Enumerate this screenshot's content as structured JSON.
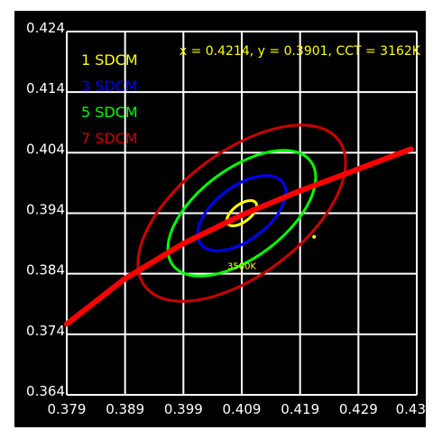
{
  "chart_data": {
    "type": "scatter",
    "title": "",
    "xlabel": "",
    "ylabel": "",
    "xlim": [
      0.379,
      0.439
    ],
    "ylim": [
      0.364,
      0.424
    ],
    "grid": true,
    "x_ticks": [
      "0.379",
      "0.389",
      "0.399",
      "0.409",
      "0.419",
      "0.429",
      "0.43"
    ],
    "y_ticks": [
      "0.424",
      "0.414",
      "0.404",
      "0.394",
      "0.384",
      "0.374",
      "0.364"
    ],
    "readout": "x = 0.4214, y = 0.3901, CCT = 3162K",
    "measured_point": {
      "x": 0.4214,
      "y": 0.3901
    },
    "ellipse_center": {
      "x": 0.409,
      "y": 0.394
    },
    "ellipse_label": "3500K",
    "ellipses": [
      {
        "name": "1 SDCM",
        "color": "#ffff00",
        "rx": 0.0015,
        "ry": 0.003,
        "angle_deg": 53
      },
      {
        "name": "3 SDCM",
        "color": "#0000ff",
        "rx": 0.0046,
        "ry": 0.0088,
        "angle_deg": 53
      },
      {
        "name": "5 SDCM",
        "color": "#00ff00",
        "rx": 0.0076,
        "ry": 0.0148,
        "angle_deg": 53
      },
      {
        "name": "7 SDCM",
        "color": "#cc0000",
        "rx": 0.0106,
        "ry": 0.0208,
        "angle_deg": 53
      }
    ],
    "planckian_locus": {
      "color": "#ff0000",
      "x": [
        0.379,
        0.389,
        0.399,
        0.409,
        0.419,
        0.429,
        0.438
      ],
      "y": [
        0.3757,
        0.3832,
        0.389,
        0.3937,
        0.3977,
        0.4013,
        0.4046
      ]
    }
  }
}
